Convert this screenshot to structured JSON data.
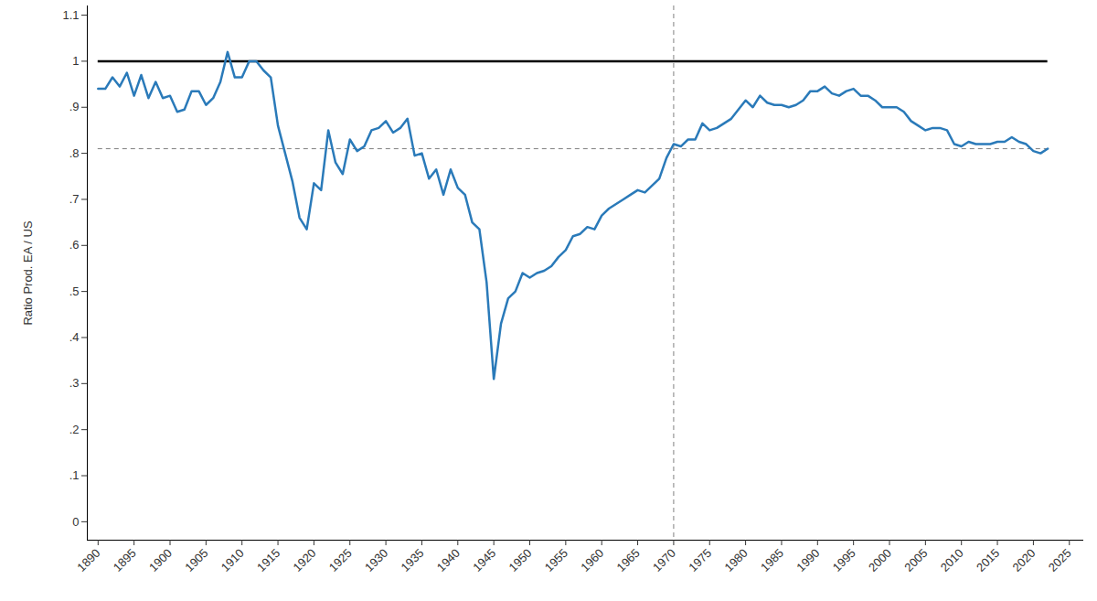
{
  "chart_data": {
    "type": "line",
    "y_label": "Ratio Prod. EA / US",
    "x": [
      1890,
      1891,
      1892,
      1893,
      1894,
      1895,
      1896,
      1897,
      1898,
      1899,
      1900,
      1901,
      1902,
      1903,
      1904,
      1905,
      1906,
      1907,
      1908,
      1909,
      1910,
      1911,
      1912,
      1913,
      1914,
      1915,
      1916,
      1917,
      1918,
      1919,
      1920,
      1921,
      1922,
      1923,
      1924,
      1925,
      1926,
      1927,
      1928,
      1929,
      1930,
      1931,
      1932,
      1933,
      1934,
      1935,
      1936,
      1937,
      1938,
      1939,
      1940,
      1941,
      1942,
      1943,
      1944,
      1945,
      1946,
      1947,
      1948,
      1949,
      1950,
      1951,
      1952,
      1953,
      1954,
      1955,
      1956,
      1957,
      1958,
      1959,
      1960,
      1961,
      1962,
      1963,
      1964,
      1965,
      1966,
      1967,
      1968,
      1969,
      1970,
      1971,
      1972,
      1973,
      1974,
      1975,
      1976,
      1977,
      1978,
      1979,
      1980,
      1981,
      1982,
      1983,
      1984,
      1985,
      1986,
      1987,
      1988,
      1989,
      1990,
      1991,
      1992,
      1993,
      1994,
      1995,
      1996,
      1997,
      1998,
      1999,
      2000,
      2001,
      2002,
      2003,
      2004,
      2005,
      2006,
      2007,
      2008,
      2009,
      2010,
      2011,
      2012,
      2013,
      2014,
      2015,
      2016,
      2017,
      2018,
      2019,
      2020,
      2021,
      2022
    ],
    "values": [
      0.94,
      0.94,
      0.965,
      0.945,
      0.975,
      0.925,
      0.97,
      0.92,
      0.955,
      0.92,
      0.925,
      0.89,
      0.895,
      0.935,
      0.935,
      0.905,
      0.92,
      0.955,
      1.02,
      0.965,
      0.965,
      1.0,
      1.0,
      0.98,
      0.965,
      0.86,
      0.8,
      0.74,
      0.66,
      0.635,
      0.735,
      0.72,
      0.85,
      0.78,
      0.755,
      0.83,
      0.805,
      0.815,
      0.85,
      0.855,
      0.87,
      0.845,
      0.855,
      0.875,
      0.795,
      0.8,
      0.745,
      0.765,
      0.71,
      0.765,
      0.725,
      0.71,
      0.65,
      0.635,
      0.52,
      0.31,
      0.43,
      0.485,
      0.5,
      0.54,
      0.53,
      0.54,
      0.545,
      0.555,
      0.575,
      0.59,
      0.62,
      0.625,
      0.64,
      0.635,
      0.665,
      0.68,
      0.69,
      0.7,
      0.71,
      0.72,
      0.715,
      0.73,
      0.745,
      0.79,
      0.82,
      0.815,
      0.83,
      0.83,
      0.865,
      0.85,
      0.855,
      0.865,
      0.875,
      0.895,
      0.915,
      0.9,
      0.925,
      0.91,
      0.905,
      0.905,
      0.9,
      0.905,
      0.915,
      0.935,
      0.935,
      0.945,
      0.93,
      0.925,
      0.935,
      0.94,
      0.925,
      0.925,
      0.915,
      0.9,
      0.9,
      0.9,
      0.89,
      0.87,
      0.86,
      0.85,
      0.855,
      0.855,
      0.85,
      0.82,
      0.815,
      0.825,
      0.82,
      0.82,
      0.82,
      0.825,
      0.825,
      0.835,
      0.825,
      0.82,
      0.805,
      0.8,
      0.81
    ],
    "color": "#2a7ab9",
    "xlim": [
      1888.5,
      2027
    ],
    "xticks": [
      1890,
      1895,
      1900,
      1905,
      1910,
      1915,
      1920,
      1925,
      1930,
      1935,
      1940,
      1945,
      1950,
      1955,
      1960,
      1965,
      1970,
      1975,
      1980,
      1985,
      1990,
      1995,
      2000,
      2005,
      2010,
      2015,
      2020,
      2025
    ],
    "ylim": [
      -0.04,
      1.12
    ],
    "yticks": [
      0,
      {
        "value": 0.1,
        "label": ".1"
      },
      {
        "value": 0.2,
        "label": ".2"
      },
      {
        "value": 0.3,
        "label": ".3"
      },
      {
        "value": 0.4,
        "label": ".4"
      },
      {
        "value": 0.5,
        "label": ".5"
      },
      {
        "value": 0.6,
        "label": ".6"
      },
      {
        "value": 0.7,
        "label": ".7"
      },
      {
        "value": 0.8,
        "label": ".8"
      },
      {
        "value": 0.9,
        "label": ".9"
      },
      1,
      1.1
    ],
    "grid": false,
    "reference_lines": [
      {
        "y": 1,
        "x": [
          1890,
          2022
        ],
        "color": "#000000",
        "line_style": "solid"
      },
      {
        "y": 0.81,
        "x": [
          1890,
          2022
        ],
        "color": "#808080",
        "line_style": "dashed"
      },
      {
        "x": 1970,
        "color": "#808080",
        "line_style": "dashed"
      }
    ]
  }
}
